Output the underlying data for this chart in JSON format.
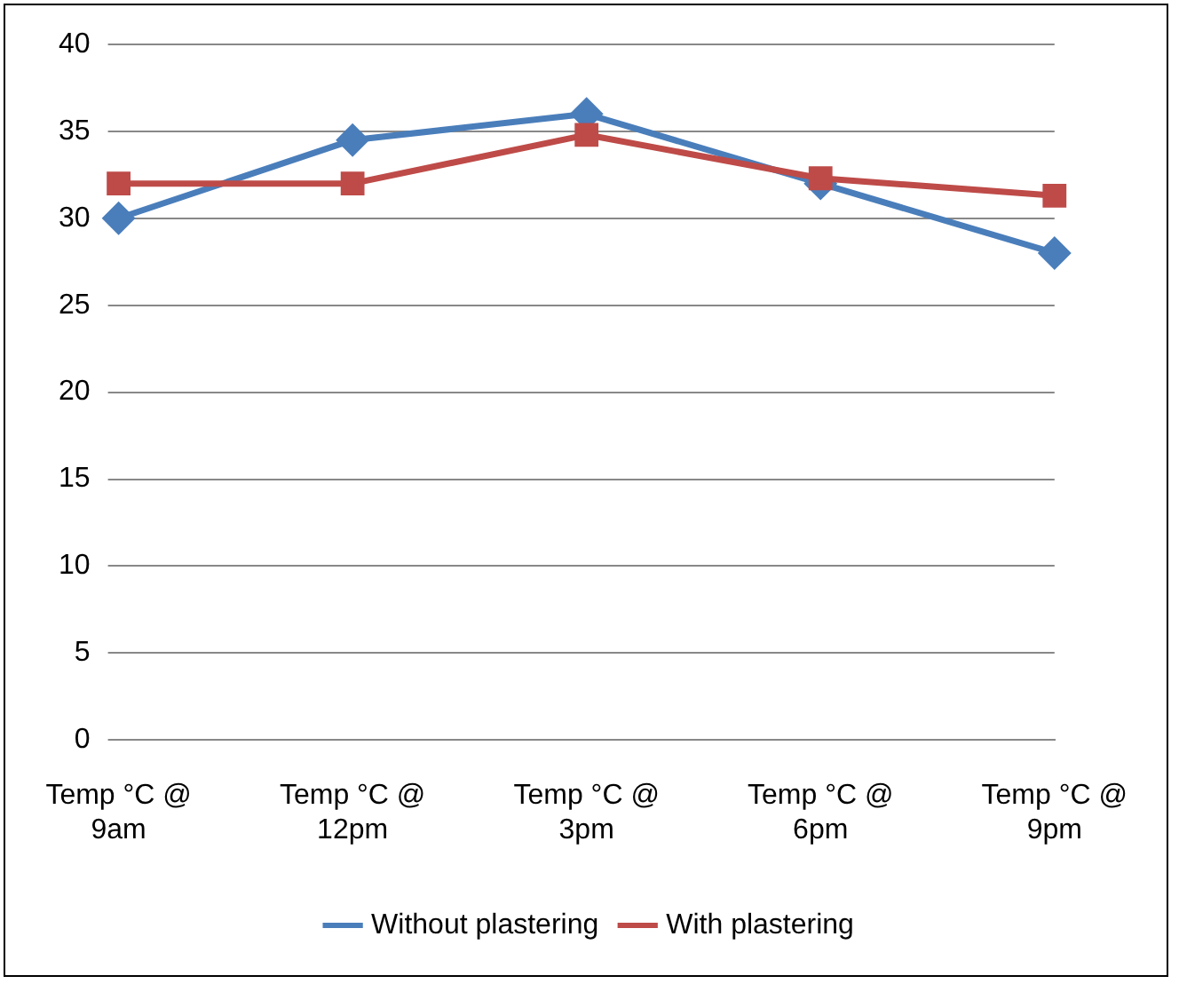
{
  "chart_data": {
    "type": "line",
    "categories": [
      "Temp °C @ 9am",
      "Temp °C @ 12pm",
      "Temp °C @ 3pm",
      "Temp °C @ 6pm",
      "Temp °C @ 9pm"
    ],
    "series": [
      {
        "name": "Without plastering",
        "color": "#4a7ebb",
        "values": [
          30,
          34.5,
          36,
          32,
          28
        ],
        "marker": "diamond"
      },
      {
        "name": "With plastering",
        "color": "#be4b48",
        "values": [
          32,
          32,
          34.8,
          32.3,
          31.3
        ],
        "marker": "square"
      }
    ],
    "ylim": [
      0,
      40
    ],
    "yticks": [
      0,
      5,
      10,
      15,
      20,
      25,
      30,
      35,
      40
    ],
    "grid": "y",
    "legend": "bottom",
    "line_style": "solid"
  }
}
